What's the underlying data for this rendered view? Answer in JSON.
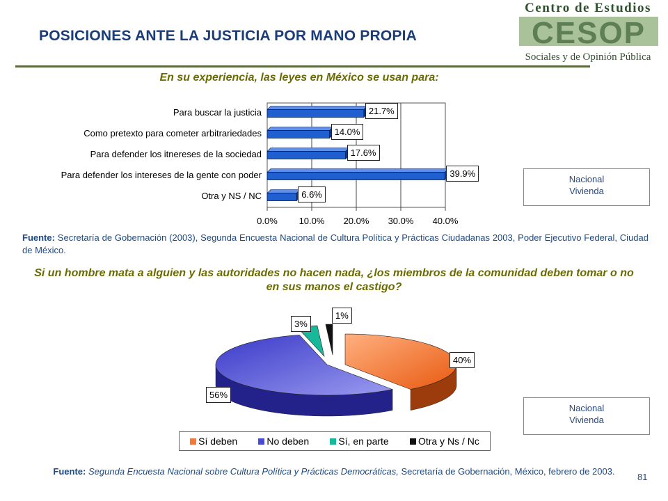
{
  "header": {
    "title": "POSICIONES ANTE LA JUSTICIA POR MANO PROPIA",
    "logo_top": "Centro de Estudios",
    "logo_mark": "CESOP",
    "logo_bottom": "Sociales y de Opinión Pública"
  },
  "question1": "En su experiencia, las leyes en México se usan para:",
  "question2": "Si un hombre mata a alguien y las autoridades no hacen nada, ¿los miembros de la comunidad deben tomar o no en sus manos el castigo?",
  "source1": {
    "label": "Fuente:",
    "text": "Secretaría de Gobernación (2003), Segunda Encuesta Nacional de Cultura Política y Prácticas Ciudadanas 2003, Poder Ejecutivo Federal, Ciudad de México."
  },
  "source2": {
    "label": "Fuente:",
    "italic": "Segunda Encuesta Nacional sobre Cultura Política y Prácticas Democráticas,",
    "text": "Secretaría de Gobernación, México, febrero de 2003."
  },
  "note1": {
    "line1": "Nacional",
    "line2": "Vivienda"
  },
  "note2": {
    "line1": "Nacional",
    "line2": "Vivienda"
  },
  "page_number": "81",
  "colors": {
    "title": "#1a3c78",
    "bar": "#1f5fd0",
    "subtitle": "#6b6b00",
    "pie_si": "#f47a3a",
    "pie_no": "#4a4ad8",
    "pie_parte": "#1ab89a",
    "pie_otra": "#111111"
  },
  "chart_data": [
    {
      "type": "bar",
      "orientation": "horizontal",
      "categories": [
        "Para buscar la justicia",
        "Como pretexto para cometer arbitrariedades",
        "Para defender los itnereses de la sociedad",
        "Para defender los intereses de la gente con poder",
        "Otra  y NS /  NC"
      ],
      "values": [
        21.7,
        14.0,
        17.6,
        39.9,
        6.6
      ],
      "value_labels": [
        "21.7%",
        "14.0%",
        "17.6%",
        "39.9%",
        "6.6%"
      ],
      "xlim": [
        0,
        40
      ],
      "ticks": [
        "0.0%",
        "10.0%",
        "20.0%",
        "30.0%",
        "40.0%"
      ],
      "grid": true
    },
    {
      "type": "pie",
      "labels": [
        "Sí deben",
        "No deben",
        "Sí, en parte",
        "Otra y Ns /  Nc"
      ],
      "values": [
        40,
        56,
        3,
        1
      ],
      "value_labels": [
        "40%",
        "56%",
        "3%",
        "1%"
      ],
      "legend": "bottom"
    }
  ]
}
